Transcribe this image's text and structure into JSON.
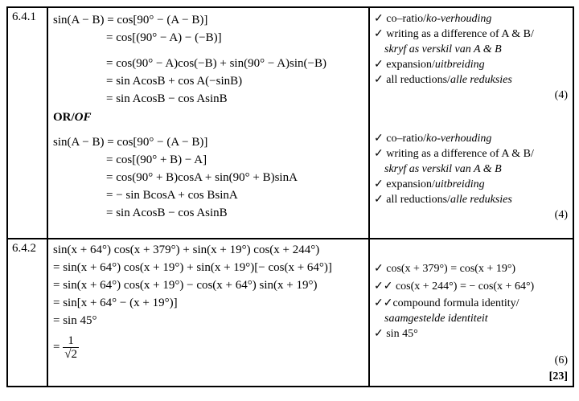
{
  "q641": {
    "number": "6.4.1",
    "method1": [
      "sin(A − B) = cos[90° − (A − B)]",
      "= cos[(90° − A) − (−B)]",
      "= cos(90° − A)cos(−B) + sin(90° − A)sin(−B)",
      "= sin AcosB + cos A(−sinB)",
      "= sin AcosB − cos AsinB"
    ],
    "or_label": "OR/",
    "or_italic": "OF",
    "method2": [
      "sin(A − B) = cos[90° − (A − B)]",
      "= cos[(90° + B) − A]",
      "= cos(90° + B)cosA + sin(90° + B)sinA",
      "= − sin BcosA + cos BsinA",
      "= sin AcosB − cos AsinB"
    ],
    "marks1": {
      "a": "✓ co–ratio/",
      "a_it": "ko-verhouding",
      "b": "✓ writing  as a difference  of A & B/",
      "b2_it": "skryf as verskil van A & B",
      "c": "✓ expansion/",
      "c_it": "uitbreiding",
      "d": "✓ all reductions/",
      "d_it": "alle  reduksies",
      "score": "(4)"
    },
    "marks2": {
      "a": "✓ co–ratio/",
      "a_it": "ko-verhouding",
      "b": "✓ writing  as a difference  of A & B/",
      "b2_it": "skryf as verskil van A & B",
      "c": "✓ expansion/",
      "c_it": "uitbreiding",
      "d": "✓ all reductions/",
      "d_it": "alle  reduksies",
      "score": "(4)"
    }
  },
  "q642": {
    "number": "6.4.2",
    "lines": [
      "sin(x + 64°) cos(x + 379°) + sin(x + 19°) cos(x + 244°)",
      "= sin(x + 64°) cos(x + 19°) + sin(x + 19°)[− cos(x + 64°)]",
      "= sin(x + 64°) cos(x + 19°) − cos(x + 64°) sin(x + 19°)",
      "= sin[x + 64° − (x + 19°)]",
      "= sin 45°"
    ],
    "frac_eq": "=",
    "frac_num": "1",
    "frac_den": "√2",
    "marks": {
      "a": "✓ cos(x + 379°) = cos(x + 19°)",
      "b": "✓✓ cos(x + 244°) = − cos(x + 64°)",
      "c": "✓✓compound formula identity/",
      "c2_it": "saamgestelde identiteit",
      "d": "✓ sin 45°",
      "score": "(6)",
      "total": "[23]"
    }
  }
}
